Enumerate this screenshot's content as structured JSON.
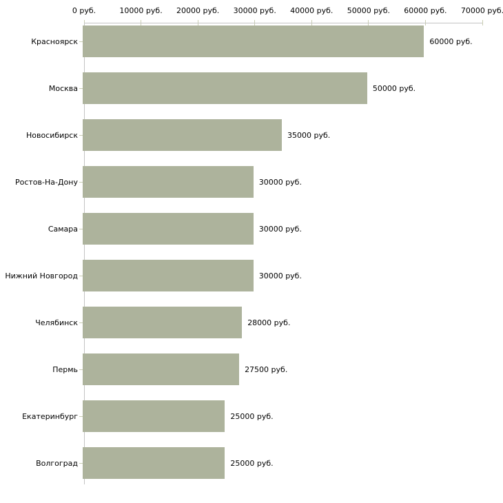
{
  "chart_data": {
    "type": "bar",
    "orientation": "horizontal",
    "title": "",
    "unit": "руб.",
    "categories": [
      "Красноярск",
      "Москва",
      "Новосибирск",
      "Ростов-На-Дону",
      "Самара",
      "Нижний Новгород",
      "Челябинск",
      "Пермь",
      "Екатеринбург",
      "Волгоград"
    ],
    "values": [
      60000,
      50000,
      35000,
      30000,
      30000,
      30000,
      28000,
      27500,
      25000,
      25000
    ],
    "value_labels": [
      "60000 руб.",
      "50000 руб.",
      "35000 руб.",
      "30000 руб.",
      "30000 руб.",
      "30000 руб.",
      "28000 руб.",
      "27500 руб.",
      "25000 руб.",
      "25000 руб."
    ],
    "x_axis": {
      "min": 0,
      "max": 70000,
      "tick_step": 10000,
      "tick_labels": [
        "0 руб.",
        "10000 руб.",
        "20000 руб.",
        "30000 руб.",
        "40000 руб.",
        "50000 руб.",
        "60000 руб.",
        "70000 руб."
      ],
      "position": "top"
    },
    "grid": false,
    "legend": false,
    "colors": {
      "bar": "#adb39c",
      "axis_line": "#c3c3c3",
      "tick": "#c9cdb2",
      "text": "#000000",
      "background": "#ffffff"
    }
  }
}
